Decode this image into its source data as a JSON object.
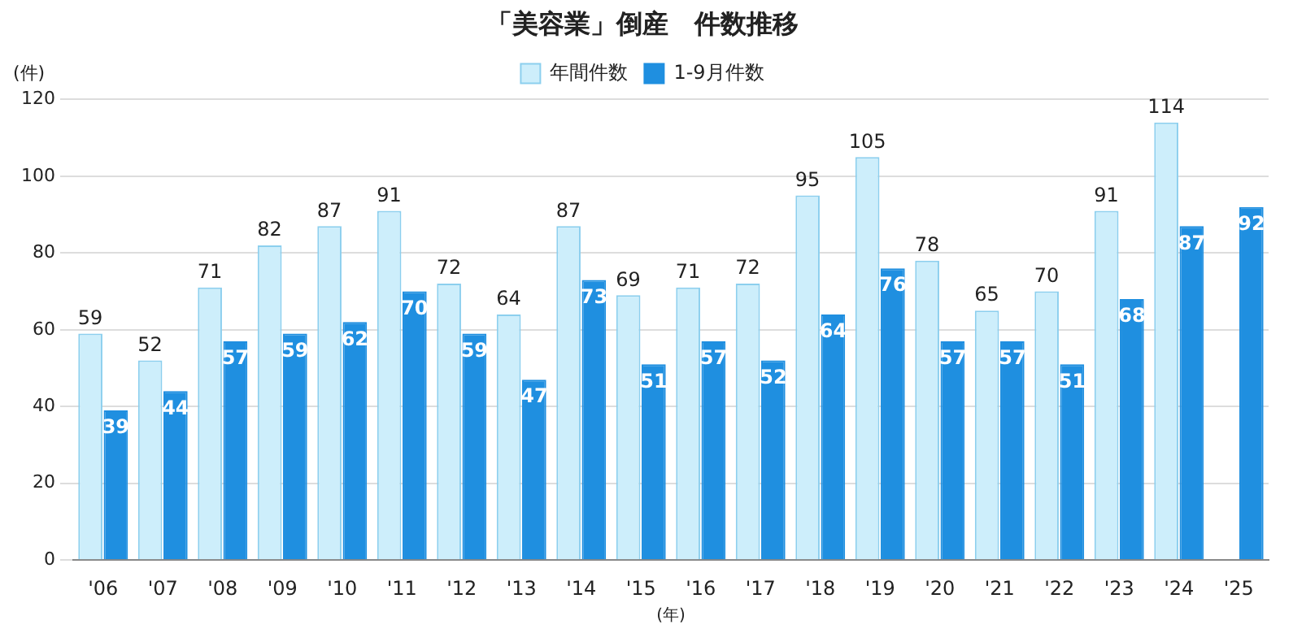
{
  "chart_data": {
    "type": "bar",
    "title": "「美容業」倒産　件数推移",
    "ylabel": "(件)",
    "xlabel": "(年)",
    "categories": [
      "'06",
      "'07",
      "'08",
      "'09",
      "'10",
      "'11",
      "'12",
      "'13",
      "'14",
      "'15",
      "'16",
      "'17",
      "'18",
      "'19",
      "'20",
      "'21",
      "'22",
      "'23",
      "'24",
      "'25"
    ],
    "series": [
      {
        "name": "年間件数",
        "color": "#cdeefb",
        "values": [
          59,
          52,
          71,
          82,
          87,
          91,
          72,
          64,
          87,
          69,
          71,
          72,
          95,
          105,
          78,
          65,
          70,
          91,
          114,
          null
        ]
      },
      {
        "name": "1-9月件数",
        "color": "#1f8fe0",
        "values": [
          39,
          44,
          57,
          59,
          62,
          70,
          59,
          47,
          73,
          51,
          57,
          52,
          64,
          76,
          57,
          57,
          51,
          68,
          87,
          92
        ]
      }
    ],
    "ylim": [
      0,
      120
    ],
    "yticks": [
      0,
      20,
      40,
      60,
      80,
      100,
      120
    ],
    "grid": "y",
    "legend": "top",
    "data_labels": true
  }
}
